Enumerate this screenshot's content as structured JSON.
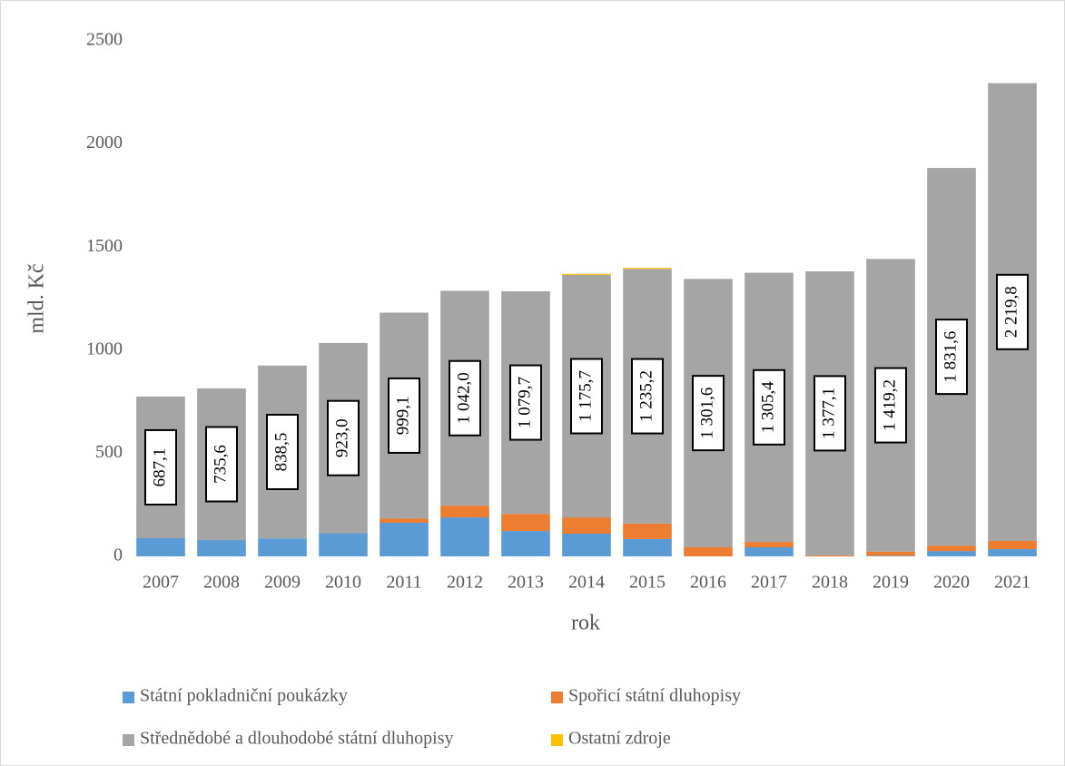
{
  "chart_data": {
    "type": "bar",
    "stacked": true,
    "y_label": "mld. Kč",
    "x_label": "rok",
    "categories": [
      "2007",
      "2008",
      "2009",
      "2010",
      "2011",
      "2012",
      "2013",
      "2014",
      "2015",
      "2016",
      "2017",
      "2018",
      "2019",
      "2020",
      "2021"
    ],
    "series": [
      {
        "name": "Státní pokladniční poukázky",
        "color": "#5b9bd5",
        "values": [
          88,
          79,
          87,
          112,
          163,
          189,
          123,
          110,
          84,
          0,
          44,
          0,
          3,
          26,
          35
        ]
      },
      {
        "name": "Spořicí státní dluhopisy",
        "color": "#ed7d31",
        "values": [
          0,
          0,
          0,
          0,
          20,
          57,
          83,
          79,
          75,
          44,
          26,
          5,
          20,
          26,
          40
        ]
      },
      {
        "name": "Střednědobé a dlouhodobé státní dluhopisy",
        "color": "#a5a5a5",
        "values": [
          687.1,
          735.6,
          838.5,
          923.0,
          999.1,
          1042.0,
          1079.7,
          1175.7,
          1235.2,
          1301.6,
          1305.4,
          1377.1,
          1419.2,
          1831.6,
          2219.8
        ],
        "value_labels": [
          "687,1",
          "735,6",
          "838,5",
          "923,0",
          "999,1",
          "1 042,0",
          "1 079,7",
          "1 175,7",
          "1 235,2",
          "1 301,6",
          "1 305,4",
          "1 377,1",
          "1 419,2",
          "1 831,6",
          "2 219,8"
        ]
      },
      {
        "name": "Ostatní zdroje",
        "color": "#ffc000",
        "values": [
          0,
          0,
          0,
          0,
          0,
          0,
          0,
          5,
          5,
          0,
          0,
          0,
          0,
          0,
          0
        ]
      }
    ],
    "ylim": [
      0,
      2500
    ],
    "yticks": [
      0,
      500,
      1000,
      1500,
      2000,
      2500
    ],
    "grid": false
  }
}
